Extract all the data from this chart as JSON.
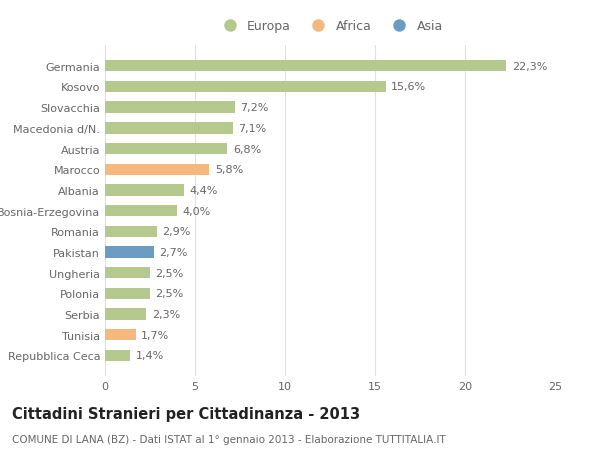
{
  "categories": [
    "Repubblica Ceca",
    "Tunisia",
    "Serbia",
    "Polonia",
    "Ungheria",
    "Pakistan",
    "Romania",
    "Bosnia-Erzegovina",
    "Albania",
    "Marocco",
    "Austria",
    "Macedonia d/N.",
    "Slovacchia",
    "Kosovo",
    "Germania"
  ],
  "values": [
    1.4,
    1.7,
    2.3,
    2.5,
    2.5,
    2.7,
    2.9,
    4.0,
    4.4,
    5.8,
    6.8,
    7.1,
    7.2,
    15.6,
    22.3
  ],
  "labels": [
    "1,4%",
    "1,7%",
    "2,3%",
    "2,5%",
    "2,5%",
    "2,7%",
    "2,9%",
    "4,0%",
    "4,4%",
    "5,8%",
    "6,8%",
    "7,1%",
    "7,2%",
    "15,6%",
    "22,3%"
  ],
  "continents": [
    "Europa",
    "Africa",
    "Europa",
    "Europa",
    "Europa",
    "Asia",
    "Europa",
    "Europa",
    "Europa",
    "Africa",
    "Europa",
    "Europa",
    "Europa",
    "Europa",
    "Europa"
  ],
  "colors": {
    "Europa": "#b5c98e",
    "Africa": "#f5b97f",
    "Asia": "#6b9dc2"
  },
  "background_color": "#ffffff",
  "grid_color": "#e0e0e0",
  "title": "Cittadini Stranieri per Cittadinanza - 2013",
  "subtitle": "COMUNE DI LANA (BZ) - Dati ISTAT al 1° gennaio 2013 - Elaborazione TUTTITALIA.IT",
  "xlim": [
    0,
    25
  ],
  "xticks": [
    0,
    5,
    10,
    15,
    20,
    25
  ],
  "bar_height": 0.55,
  "label_fontsize": 8,
  "tick_fontsize": 8,
  "title_fontsize": 10.5,
  "subtitle_fontsize": 7.5,
  "legend_fontsize": 9
}
